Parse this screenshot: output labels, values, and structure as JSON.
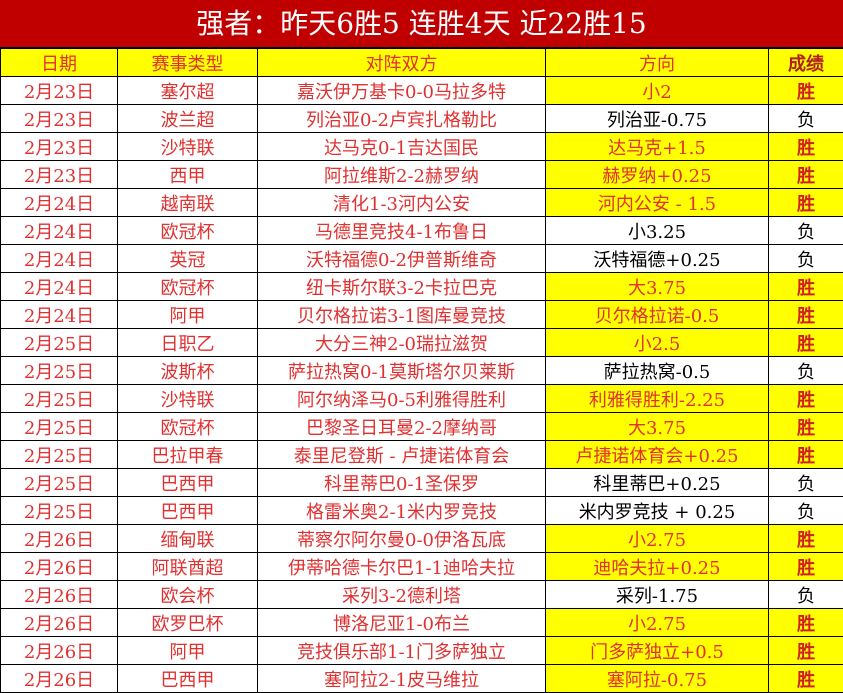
{
  "title": "强者：昨天6胜5 连胜4天 近22胜15",
  "headers": [
    "日期",
    "赛事类型",
    "对阵双方",
    "方向",
    "成绩"
  ],
  "colors": {
    "title_bg": "#c00000",
    "highlight": "#ffff00",
    "text_red": "#e03030"
  },
  "rows": [
    {
      "date": "2月23日",
      "league": "塞尔超",
      "match": "嘉沃伊万基卡0-0马拉多特",
      "pick": "小2",
      "result": "胜",
      "win": true
    },
    {
      "date": "2月23日",
      "league": "波兰超",
      "match": "列治亚0-2卢宾扎格勒比",
      "pick": "列治亚-0.75",
      "result": "负",
      "win": false
    },
    {
      "date": "2月23日",
      "league": "沙特联",
      "match": "达马克0-1吉达国民",
      "pick": "达马克+1.5",
      "result": "胜",
      "win": true
    },
    {
      "date": "2月23日",
      "league": "西甲",
      "match": "阿拉维斯2-2赫罗纳",
      "pick": "赫罗纳+0.25",
      "result": "胜",
      "win": true
    },
    {
      "date": "2月24日",
      "league": "越南联",
      "match": "清化1-3河内公安",
      "pick": "河内公安 - 1.5",
      "result": "胜",
      "win": true
    },
    {
      "date": "2月24日",
      "league": "欧冠杯",
      "match": "马德里竞技4-1布鲁日",
      "pick": "小3.25",
      "result": "负",
      "win": false
    },
    {
      "date": "2月24日",
      "league": "英冠",
      "match": "沃特福德0-2伊普斯维奇",
      "pick": "沃特福德+0.25",
      "result": "负",
      "win": false
    },
    {
      "date": "2月24日",
      "league": "欧冠杯",
      "match": "纽卡斯尔联3-2卡拉巴克",
      "pick": "大3.75",
      "result": "胜",
      "win": true
    },
    {
      "date": "2月24日",
      "league": "阿甲",
      "match": "贝尔格拉诺3-1图库曼竞技",
      "pick": "贝尔格拉诺-0.5",
      "result": "胜",
      "win": true
    },
    {
      "date": "2月25日",
      "league": "日职乙",
      "match": "大分三神2-0瑞拉滋贺",
      "pick": "小2.5",
      "result": "胜",
      "win": true
    },
    {
      "date": "2月25日",
      "league": "波斯杯",
      "match": "萨拉热窝0-1莫斯塔尔贝莱斯",
      "pick": "萨拉热窝-0.5",
      "result": "负",
      "win": false
    },
    {
      "date": "2月25日",
      "league": "沙特联",
      "match": "阿尔纳泽马0-5利雅得胜利",
      "pick": "利雅得胜利-2.25",
      "result": "胜",
      "win": true
    },
    {
      "date": "2月25日",
      "league": "欧冠杯",
      "match": "巴黎圣日耳曼2-2摩纳哥",
      "pick": "大3.75",
      "result": "胜",
      "win": true
    },
    {
      "date": "2月25日",
      "league": "巴拉甲春",
      "match": "泰里尼登斯 - 卢捷诺体育会",
      "pick": "卢捷诺体育会+0.25",
      "result": "胜",
      "win": true
    },
    {
      "date": "2月25日",
      "league": "巴西甲",
      "match": "科里蒂巴0-1圣保罗",
      "pick": "科里蒂巴+0.25",
      "result": "负",
      "win": false
    },
    {
      "date": "2月25日",
      "league": "巴西甲",
      "match": "格雷米奥2-1米内罗竞技",
      "pick": "米内罗竞技 + 0.25",
      "result": "负",
      "win": false
    },
    {
      "date": "2月26日",
      "league": "缅甸联",
      "match": "蒂察尔阿尔曼0-0伊洛瓦底",
      "pick": "小2.75",
      "result": "胜",
      "win": true
    },
    {
      "date": "2月26日",
      "league": "阿联酋超",
      "match": "伊蒂哈德卡尔巴1-1迪哈夫拉",
      "pick": "迪哈夫拉+0.25",
      "result": "胜",
      "win": true
    },
    {
      "date": "2月26日",
      "league": "欧会杯",
      "match": "采列3-2德利塔",
      "pick": "采列-1.75",
      "result": "负",
      "win": false
    },
    {
      "date": "2月26日",
      "league": "欧罗巴杯",
      "match": "博洛尼亚1-0布兰",
      "pick": "小2.75",
      "result": "胜",
      "win": true
    },
    {
      "date": "2月26日",
      "league": "阿甲",
      "match": "竞技俱乐部1-1门多萨独立",
      "pick": "门多萨独立+0.5",
      "result": "胜",
      "win": true
    },
    {
      "date": "2月26日",
      "league": "巴西甲",
      "match": "塞阿拉2-1皮马维拉",
      "pick": "塞阿拉-0.75",
      "result": "胜",
      "win": true
    }
  ]
}
